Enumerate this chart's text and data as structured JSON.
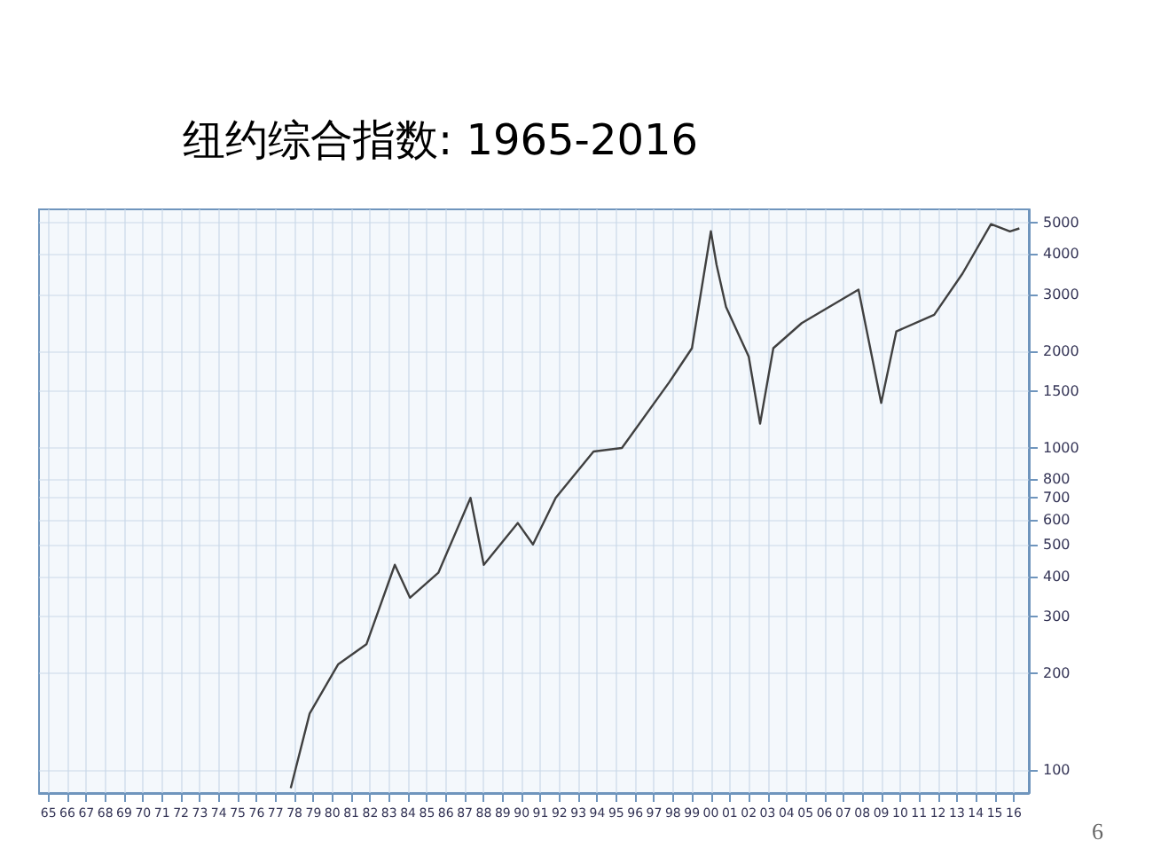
{
  "chart_data": {
    "type": "line",
    "title": "纽约综合指数: 1965-2016",
    "annotations": [
      "6"
    ],
    "x": [
      1977.8,
      1978.8,
      1980.3,
      1981.8,
      1983.3,
      1984.1,
      1985.6,
      1987.3,
      1988,
      1989.8,
      1990.6,
      1991.8,
      1993.8,
      1995.3,
      1997.8,
      1999,
      2000,
      2000.3,
      2000.8,
      2002,
      2002.6,
      2003.3,
      2004.8,
      2007.8,
      2009,
      2009.8,
      2011.8,
      2013.3,
      2014.8,
      2015.8,
      2016.3
    ],
    "series": [
      {
        "color": "#404040",
        "values": [
          88,
          150,
          213,
          246,
          434,
          343,
          410,
          700,
          434,
          585,
          502,
          700,
          975,
          1000,
          1600,
          2040,
          4700,
          3700,
          2740,
          1920,
          1190,
          2040,
          2440,
          3100,
          1380,
          2300,
          2590,
          3480,
          4950,
          4700,
          4800
        ]
      }
    ],
    "log": "y",
    "grid": true,
    "marker": "none",
    "line_style": "solid",
    "xlim": [
      1964.5,
      2016.8
    ],
    "xticks": [
      {
        "value": 1965,
        "label": "65"
      },
      {
        "value": 1966,
        "label": "66"
      },
      {
        "value": 1967,
        "label": "67"
      },
      {
        "value": 1968,
        "label": "68"
      },
      {
        "value": 1969,
        "label": "69"
      },
      {
        "value": 1970,
        "label": "70"
      },
      {
        "value": 1971,
        "label": "71"
      },
      {
        "value": 1972,
        "label": "72"
      },
      {
        "value": 1973,
        "label": "73"
      },
      {
        "value": 1974,
        "label": "74"
      },
      {
        "value": 1975,
        "label": "75"
      },
      {
        "value": 1976,
        "label": "76"
      },
      {
        "value": 1977,
        "label": "77"
      },
      {
        "value": 1978,
        "label": "78"
      },
      {
        "value": 1979,
        "label": "79"
      },
      {
        "value": 1980,
        "label": "80"
      },
      {
        "value": 1981,
        "label": "81"
      },
      {
        "value": 1982,
        "label": "82"
      },
      {
        "value": 1983,
        "label": "83"
      },
      {
        "value": 1984,
        "label": "84"
      },
      {
        "value": 1985,
        "label": "85"
      },
      {
        "value": 1986,
        "label": "86"
      },
      {
        "value": 1987,
        "label": "87"
      },
      {
        "value": 1988,
        "label": "88"
      },
      {
        "value": 1989,
        "label": "89"
      },
      {
        "value": 1990,
        "label": "90"
      },
      {
        "value": 1991,
        "label": "91"
      },
      {
        "value": 1992,
        "label": "92"
      },
      {
        "value": 1993,
        "label": "93"
      },
      {
        "value": 1994,
        "label": "94"
      },
      {
        "value": 1995,
        "label": "95"
      },
      {
        "value": 1996,
        "label": "96"
      },
      {
        "value": 1997,
        "label": "97"
      },
      {
        "value": 1998,
        "label": "98"
      },
      {
        "value": 1999,
        "label": "99"
      },
      {
        "value": 2000,
        "label": "00"
      },
      {
        "value": 2001,
        "label": "01"
      },
      {
        "value": 2002,
        "label": "02"
      },
      {
        "value": 2003,
        "label": "03"
      },
      {
        "value": 2004,
        "label": "04"
      },
      {
        "value": 2005,
        "label": "05"
      },
      {
        "value": 2006,
        "label": "06"
      },
      {
        "value": 2007,
        "label": "07"
      },
      {
        "value": 2008,
        "label": "08"
      },
      {
        "value": 2009,
        "label": "09"
      },
      {
        "value": 2010,
        "label": "10"
      },
      {
        "value": 2011,
        "label": "11"
      },
      {
        "value": 2012,
        "label": "12"
      },
      {
        "value": 2013,
        "label": "13"
      },
      {
        "value": 2014,
        "label": "14"
      },
      {
        "value": 2015,
        "label": "15"
      },
      {
        "value": 2016,
        "label": "16"
      }
    ],
    "ylim": [
      85,
      5500
    ],
    "yticks": [
      100,
      200,
      300,
      400,
      500,
      600,
      700,
      800,
      1000,
      1500,
      2000,
      3000,
      4000,
      5000
    ]
  }
}
